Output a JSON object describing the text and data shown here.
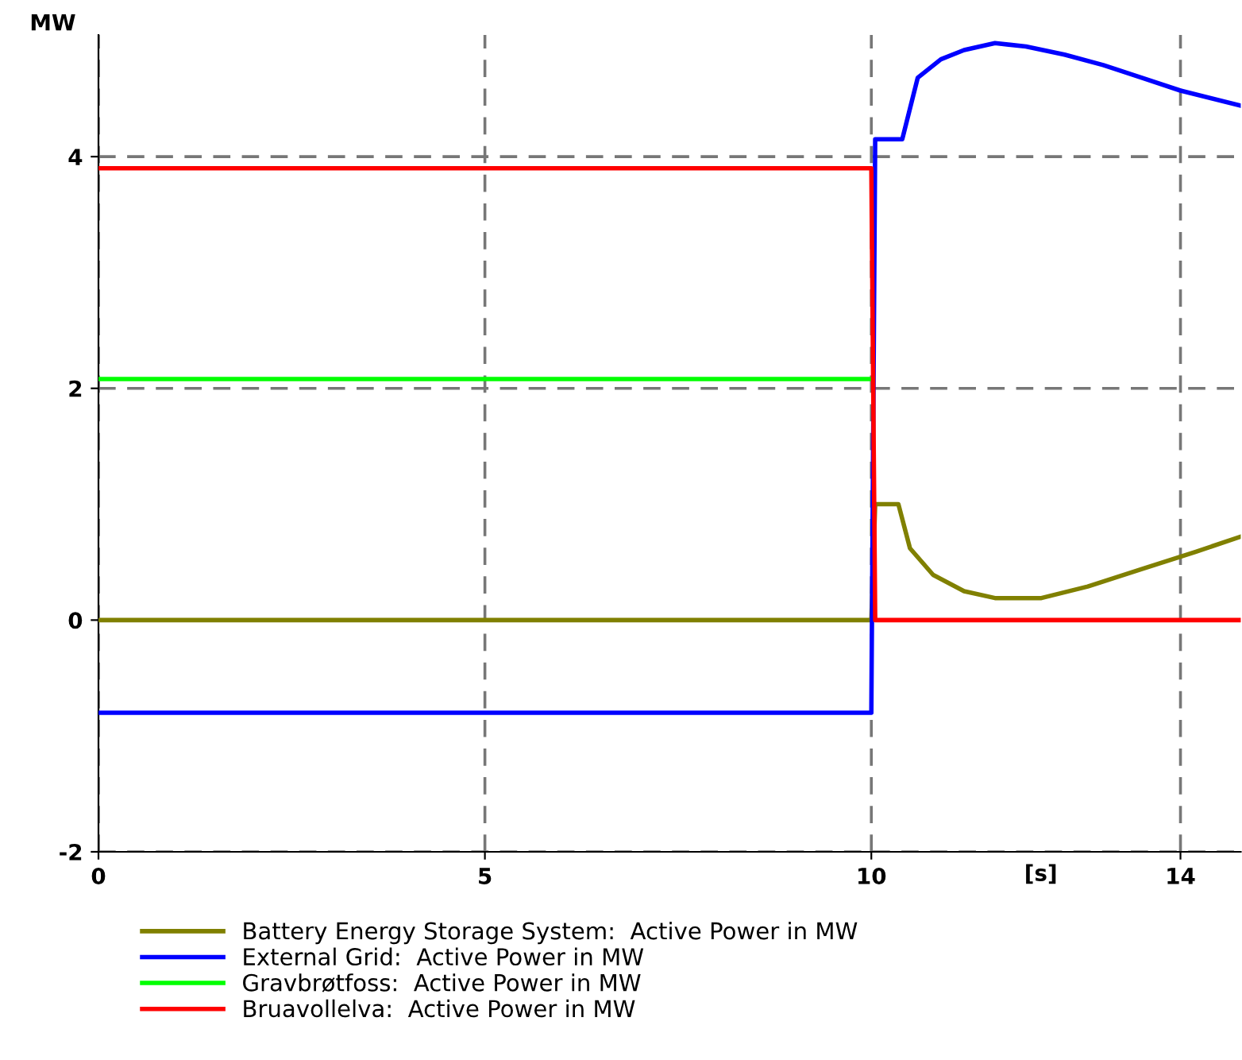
{
  "chart_data": {
    "type": "line",
    "ylabel": "MW",
    "xlabel": "[s]",
    "xlim": [
      0,
      14.78
    ],
    "ylim": [
      -2,
      5.05
    ],
    "xticks": [
      0,
      5,
      10,
      14
    ],
    "yticks": [
      -2,
      0,
      2,
      4
    ],
    "grid": true,
    "legend": "bottom",
    "line_style": "solid",
    "marker": "none",
    "series": [
      {
        "name": "Battery Energy Storage System:  Active Power in MW",
        "color": "#808000",
        "x": [
          0,
          10,
          10.05,
          10.35,
          10.5,
          10.8,
          11.2,
          11.6,
          12.2,
          12.8,
          13.5,
          14.2,
          14.78
        ],
        "values": [
          0,
          0,
          1.0,
          1.0,
          0.62,
          0.39,
          0.25,
          0.19,
          0.19,
          0.29,
          0.44,
          0.59,
          0.72
        ]
      },
      {
        "name": "External Grid:  Active Power in MW",
        "color": "#0000ff",
        "x": [
          0,
          10,
          10.05,
          10.4,
          10.6,
          10.9,
          11.2,
          11.6,
          12,
          12.5,
          13,
          13.5,
          14,
          14.78
        ],
        "values": [
          -0.8,
          -0.8,
          4.15,
          4.15,
          4.68,
          4.84,
          4.92,
          4.98,
          4.95,
          4.88,
          4.79,
          4.68,
          4.57,
          4.44
        ]
      },
      {
        "name": "Gravbrøtfoss:  Active Power in MW",
        "color": "#00ff00",
        "x": [
          0,
          10
        ],
        "values": [
          2.08,
          2.08
        ]
      },
      {
        "name": "Bruavollelva:  Active Power in MW",
        "color": "#ff0000",
        "x": [
          0,
          10,
          10.05,
          14.78
        ],
        "values": [
          3.9,
          3.9,
          0,
          0
        ]
      }
    ]
  }
}
